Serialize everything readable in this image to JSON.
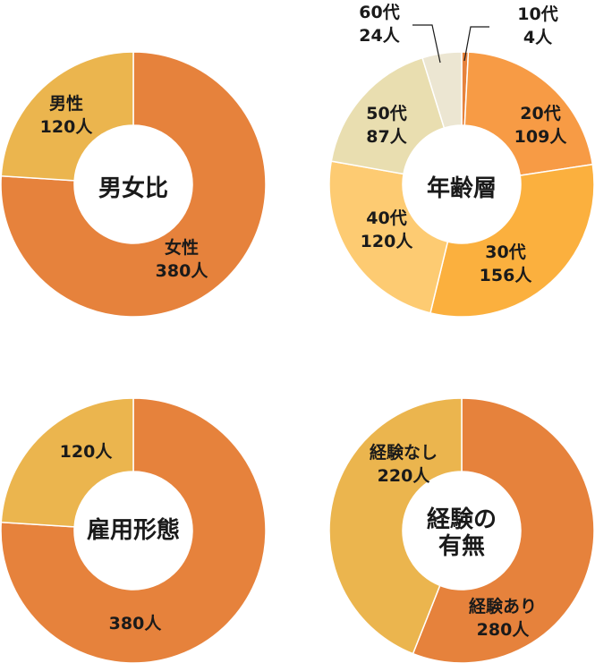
{
  "chart_data": [
    {
      "type": "pie",
      "title": "男女比",
      "slices": [
        {
          "label": "女性",
          "value_text": "380人",
          "value": 380,
          "color": "#E6823C"
        },
        {
          "label": "男性",
          "value_text": "120人",
          "value": 120,
          "color": "#EBB54E"
        }
      ]
    },
    {
      "type": "pie",
      "title": "年齢層",
      "slices": [
        {
          "label": "10代",
          "value_text": "4人",
          "value": 4,
          "color": "#E6823C"
        },
        {
          "label": "20代",
          "value_text": "109人",
          "value": 109,
          "color": "#F79B45"
        },
        {
          "label": "30代",
          "value_text": "156人",
          "value": 156,
          "color": "#FBB03E"
        },
        {
          "label": "40代",
          "value_text": "120人",
          "value": 120,
          "color": "#FDCB72"
        },
        {
          "label": "50代",
          "value_text": "87人",
          "value": 87,
          "color": "#E9DEB0"
        },
        {
          "label": "60代",
          "value_text": "24人",
          "value": 24,
          "color": "#ECE6D2"
        }
      ]
    },
    {
      "type": "pie",
      "title": "雇用形態",
      "slices": [
        {
          "label": "",
          "value_text": "380人",
          "value": 380,
          "color": "#E6823C"
        },
        {
          "label": "",
          "value_text": "120人",
          "value": 120,
          "color": "#EBB54E"
        }
      ]
    },
    {
      "type": "pie",
      "title": "経験の有無",
      "title_lines": [
        "経験の",
        "有無"
      ],
      "slices": [
        {
          "label": "経験あり",
          "value_text": "280人",
          "value": 280,
          "color": "#E6823C"
        },
        {
          "label": "経験なし",
          "value_text": "220人",
          "value": 220,
          "color": "#EBB54E"
        }
      ]
    }
  ]
}
